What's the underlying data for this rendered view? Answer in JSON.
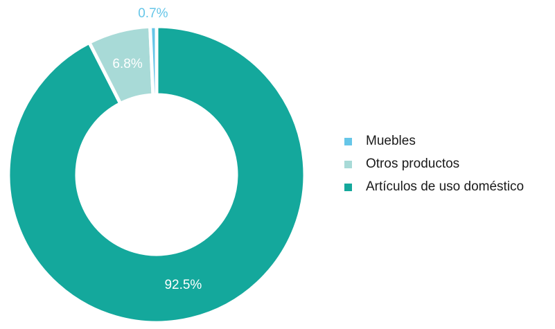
{
  "chart_data": {
    "type": "pie",
    "donut": true,
    "start_angle_deg": 0,
    "direction": "clockwise",
    "legend_position": "right",
    "categories": [
      "Artículos de uso doméstico",
      "Otros productos",
      "Muebles"
    ],
    "values": [
      92.5,
      6.8,
      0.7
    ],
    "labels": [
      "92.5%",
      "6.8%",
      "0.7%"
    ],
    "colors": [
      "#14a89c",
      "#a8dad7",
      "#66c6e8"
    ],
    "label_colors": [
      "#ffffff",
      "#ffffff",
      "#66c6e8"
    ],
    "label_outside": [
      false,
      false,
      true
    ],
    "legend": [
      {
        "label": "Muebles",
        "color": "#66c6e8"
      },
      {
        "label": "Otros productos",
        "color": "#a8dad7"
      },
      {
        "label": "Artículos de uso doméstico",
        "color": "#14a89c"
      }
    ]
  }
}
